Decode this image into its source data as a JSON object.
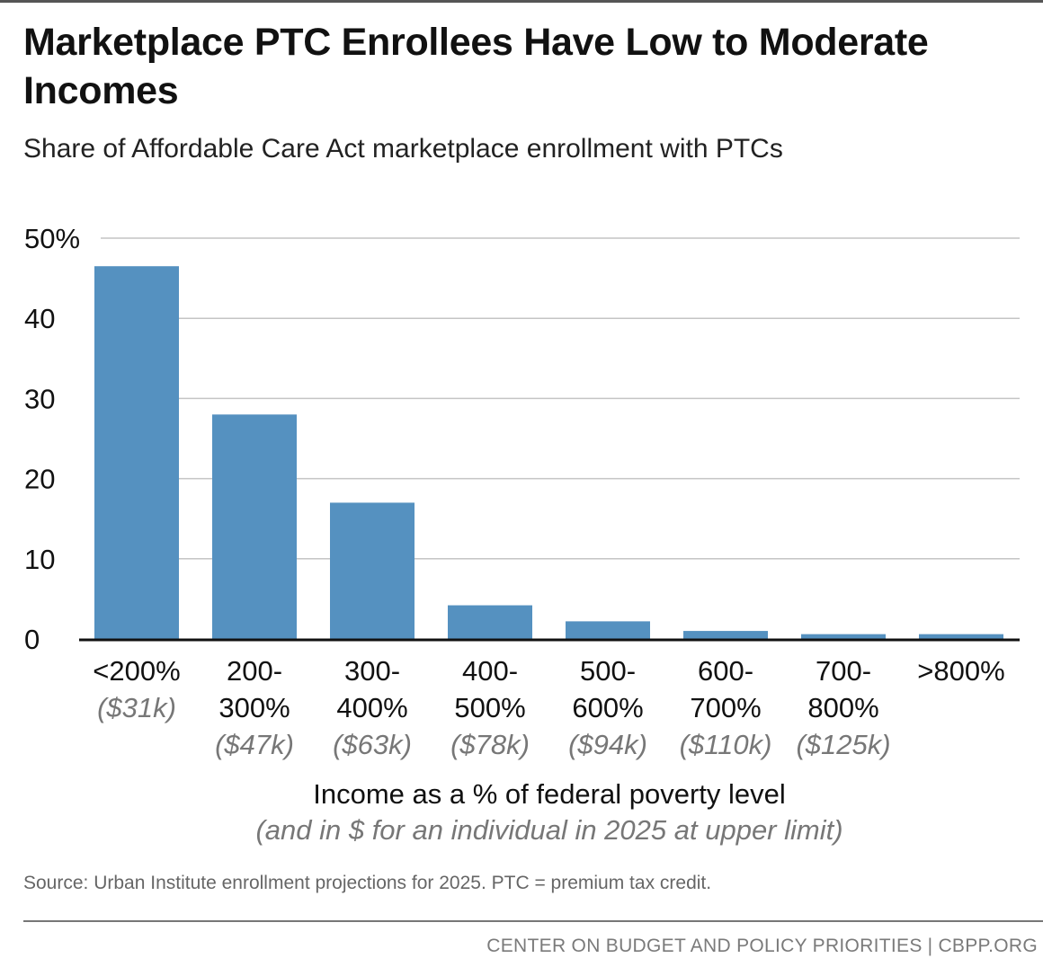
{
  "header": {
    "title": "Marketplace PTC Enrollees Have Low to Moderate Incomes",
    "subtitle": "Share of Affordable Care Act marketplace enrollment with PTCs"
  },
  "chart_data": {
    "type": "bar",
    "categories": [
      {
        "line1": "<200%",
        "line2": "",
        "dollar": "($31k)"
      },
      {
        "line1": "200-",
        "line2": "300%",
        "dollar": "($47k)"
      },
      {
        "line1": "300-",
        "line2": "400%",
        "dollar": "($63k)"
      },
      {
        "line1": "400-",
        "line2": "500%",
        "dollar": "($78k)"
      },
      {
        "line1": "500-",
        "line2": "600%",
        "dollar": "($94k)"
      },
      {
        "line1": "600-",
        "line2": "700%",
        "dollar": "($110k)"
      },
      {
        "line1": "700-",
        "line2": "800%",
        "dollar": "($125k)"
      },
      {
        "line1": ">800%",
        "line2": "",
        "dollar": ""
      }
    ],
    "values": [
      46.5,
      28,
      17,
      4.2,
      2.2,
      1.0,
      0.6,
      0.6
    ],
    "ylim": [
      0,
      50
    ],
    "yticks": [
      {
        "value": 0,
        "label": "0"
      },
      {
        "value": 10,
        "label": "10"
      },
      {
        "value": 20,
        "label": "20"
      },
      {
        "value": 30,
        "label": "30"
      },
      {
        "value": 40,
        "label": "40"
      },
      {
        "value": 50,
        "label": "50%"
      }
    ],
    "xlabel": "Income as a % of federal poverty level",
    "xlabel_sub": "(and in $ for an individual in 2025 at upper limit)",
    "grid": true,
    "bar_color": "#5591c0",
    "grid_color": "#c4c4c4",
    "axis_color": "#111111",
    "dollar_label_color": "#777777"
  },
  "source": "Source: Urban Institute enrollment projections for 2025. PTC = premium tax credit.",
  "footer": {
    "org": "CENTER ON BUDGET AND POLICY PRIORITIES",
    "divider": "|",
    "site": "CBPP.ORG"
  }
}
